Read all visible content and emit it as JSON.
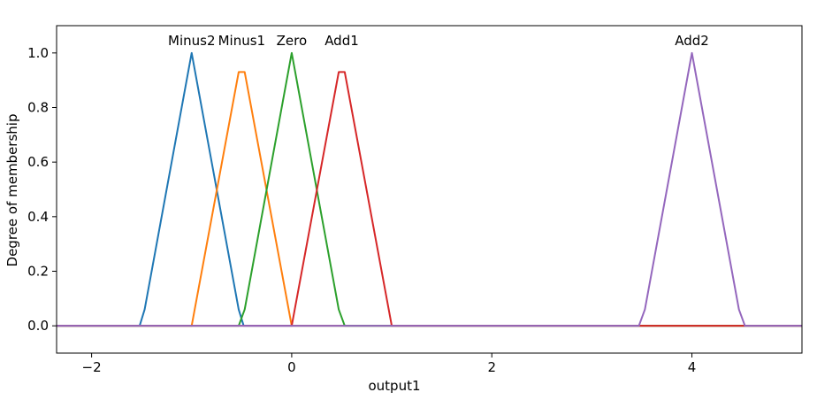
{
  "chart_data": {
    "type": "line",
    "title": "",
    "xlabel": "output1",
    "ylabel": "Degree of membership",
    "xlim": [
      -2.35,
      5.1
    ],
    "ylim": [
      -0.1,
      1.1
    ],
    "x_ticks": [
      -2,
      0,
      2,
      4
    ],
    "y_ticks": [
      0.0,
      0.2,
      0.4,
      0.6,
      0.8,
      1.0
    ],
    "x_tick_labels": [
      "−2",
      "0",
      "2",
      "4"
    ],
    "y_tick_labels": [
      "0.0",
      "0.2",
      "0.4",
      "0.6",
      "0.8",
      "1.0"
    ],
    "grid": false,
    "series": [
      {
        "name": "Minus2",
        "color": "#1f77b4",
        "label_at": [
          -1.0,
          1.0
        ],
        "x": [
          -2.35,
          -1.52,
          -1.47,
          -1.0,
          -0.53,
          -0.48,
          5.1
        ],
        "y": [
          0,
          0,
          0.06,
          1.0,
          0.06,
          0,
          0
        ]
      },
      {
        "name": "Minus1",
        "color": "#ff7f0e",
        "label_at": [
          -0.5,
          1.0
        ],
        "x": [
          -2.35,
          -1.0,
          -0.53,
          -0.47,
          -0.0,
          5.1
        ],
        "y": [
          0,
          0,
          0.93,
          0.93,
          0,
          0
        ]
      },
      {
        "name": "Zero",
        "color": "#2ca02c",
        "label_at": [
          0.0,
          1.0
        ],
        "x": [
          -2.35,
          -0.53,
          -0.47,
          0.0,
          0.47,
          0.53,
          5.1
        ],
        "y": [
          0,
          0,
          0.06,
          1.0,
          0.06,
          0,
          0
        ]
      },
      {
        "name": "Add1",
        "color": "#d62728",
        "label_at": [
          0.5,
          1.0
        ],
        "x": [
          -2.35,
          0.0,
          0.47,
          0.53,
          1.0,
          5.1
        ],
        "y": [
          0,
          0,
          0.93,
          0.93,
          0,
          0
        ]
      },
      {
        "name": "Add2",
        "color": "#9467bd",
        "label_at": [
          4.0,
          1.0
        ],
        "x": [
          -2.35,
          3.47,
          3.53,
          4.0,
          4.47,
          4.53,
          5.1
        ],
        "y": [
          0,
          0,
          0.06,
          1.0,
          0.06,
          0,
          0
        ]
      }
    ]
  }
}
